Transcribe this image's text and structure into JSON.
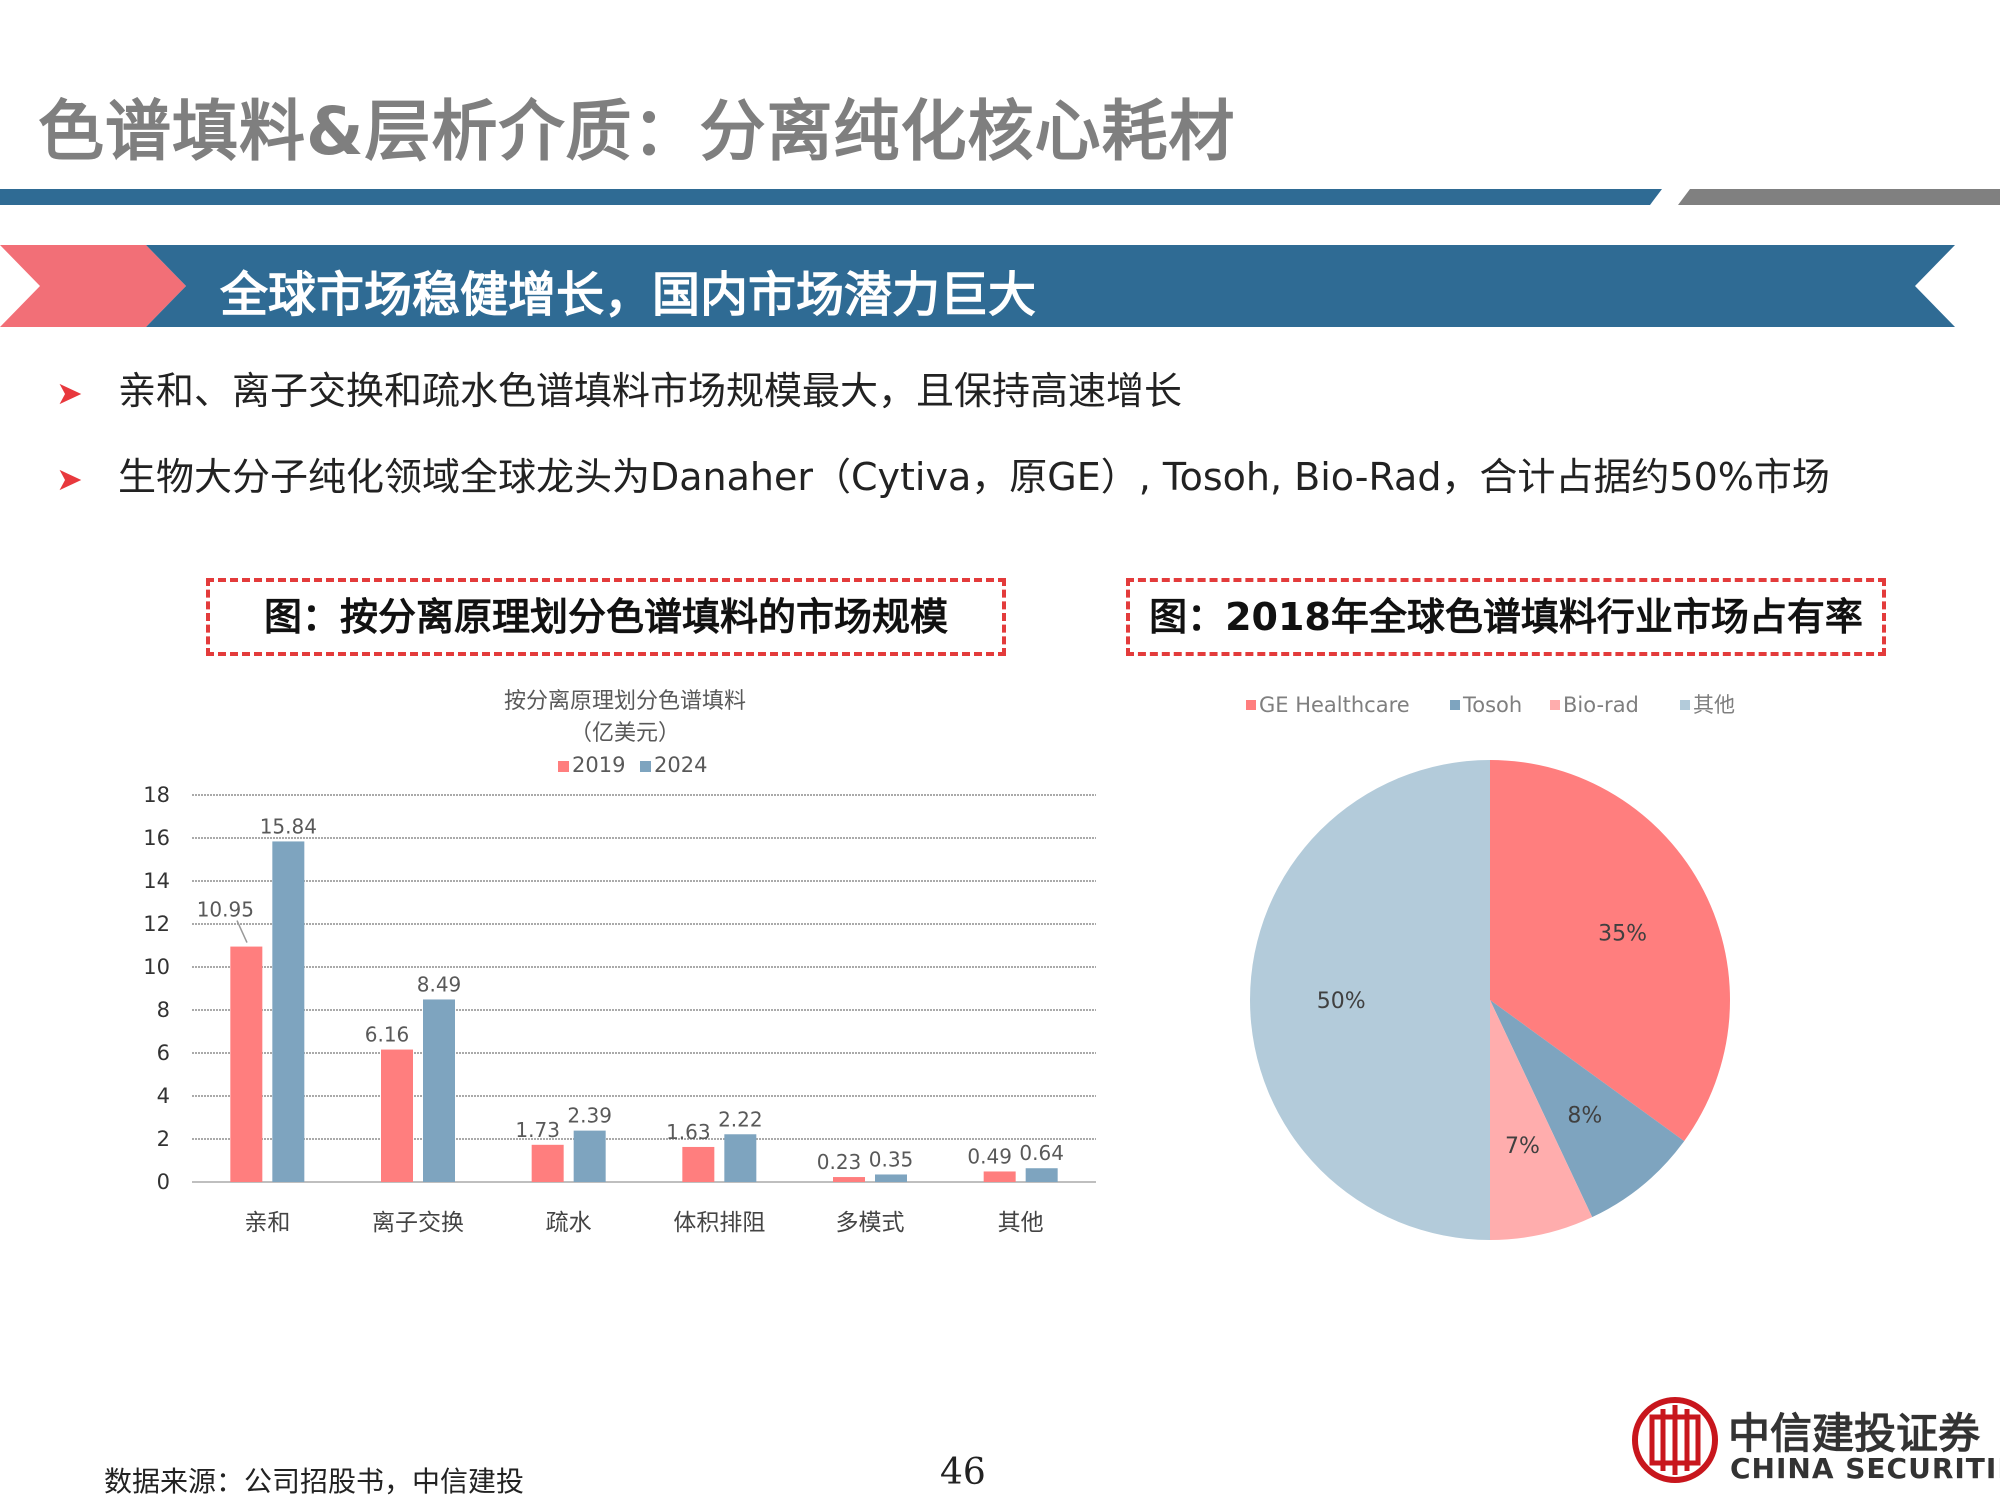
{
  "header": {
    "title": "色谱填料&层析介质：分离纯化核心耗材"
  },
  "banner": {
    "text": "全球市场稳健增长，国内市场潜力巨大"
  },
  "bullets": [
    "亲和、离子交换和疏水色谱填料市场规模最大，且保持高速增长",
    "生物大分子纯化领域全球龙头为Danaher（Cytiva，原GE）, Tosoh, Bio-Rad，合计占据约50%市场"
  ],
  "left_box": {
    "title": "图：按分离原理划分色谱填料的市场规模"
  },
  "right_box": {
    "title": "图：2018年全球色谱填料行业市场占有率"
  },
  "colors": {
    "title_gray": "#7f7f7f",
    "banner_blue": "#2f6b94",
    "banner_red": "#f26f77",
    "red": "#ff7e7e",
    "blue": "#7ea4bf",
    "pink": "#ffadad",
    "light_blue": "#b3cbda",
    "dash_red": "#e33b3b"
  },
  "chart_data": [
    {
      "type": "bar",
      "title": "按分离原理划分色谱填料",
      "subtitle": "（亿美元）",
      "categories": [
        "亲和",
        "离子交换",
        "疏水",
        "体积排阻",
        "多模式",
        "其他"
      ],
      "series": [
        {
          "name": "2019",
          "values": [
            10.95,
            6.16,
            1.73,
            1.63,
            0.23,
            0.49
          ],
          "labels": [
            "10.95",
            "6.16",
            "1.73",
            "1.63",
            "0.23",
            "0.49"
          ],
          "color": "#ff7e7e"
        },
        {
          "name": "2024",
          "values": [
            15.84,
            8.49,
            2.39,
            2.22,
            0.35,
            0.64
          ],
          "labels": [
            "15.84",
            "8.49",
            "2.39",
            "2.22",
            "0.35",
            "0.64"
          ],
          "color": "#7ea4bf"
        }
      ],
      "ylim": [
        0,
        18
      ],
      "yticks": [
        0,
        2,
        4,
        6,
        8,
        10,
        12,
        14,
        16,
        18
      ],
      "grid": true,
      "legend": "top"
    },
    {
      "type": "pie",
      "categories": [
        "GE Healthcare",
        "Tosoh",
        "Bio-rad",
        "其他"
      ],
      "values": [
        35,
        8,
        7,
        50
      ],
      "labels": [
        "35%",
        "8%",
        "7%",
        "50%"
      ],
      "colors": [
        "#ff7e7e",
        "#7ea4bf",
        "#ffadad",
        "#b3cbda"
      ],
      "legend": "top"
    }
  ],
  "footer": {
    "source": "数据来源：公司招股书，中信建投",
    "page": "46"
  },
  "logo": {
    "cn": "中信建投证券",
    "en": "CHINA SECURITIES"
  }
}
